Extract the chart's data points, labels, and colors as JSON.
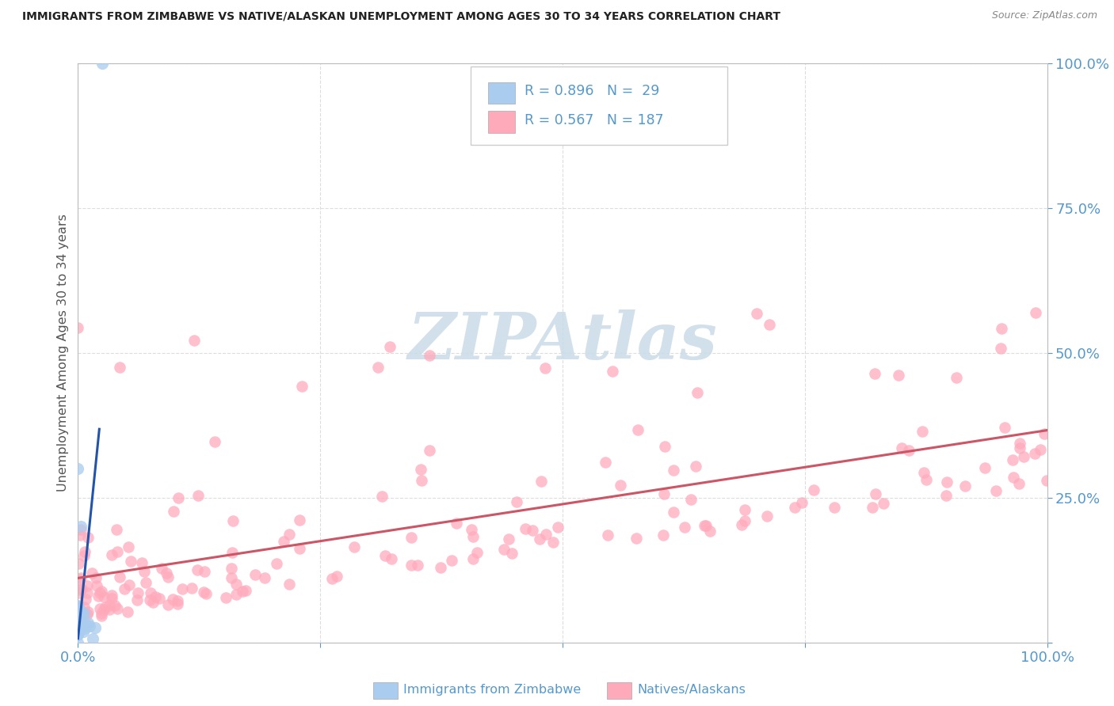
{
  "title": "IMMIGRANTS FROM ZIMBABWE VS NATIVE/ALASKAN UNEMPLOYMENT AMONG AGES 30 TO 34 YEARS CORRELATION CHART",
  "source": "Source: ZipAtlas.com",
  "ylabel": "Unemployment Among Ages 30 to 34 years",
  "legend1_r": "0.896",
  "legend1_n": "29",
  "legend2_r": "0.567",
  "legend2_n": "187",
  "blue_scatter_color": "#AACCEE",
  "pink_scatter_color": "#FFAABB",
  "blue_line_color": "#2255AA",
  "pink_line_color": "#CC5566",
  "watermark_color": "#CCDDE8",
  "tick_color": "#5599CC",
  "title_color": "#222222",
  "source_color": "#888888",
  "ylabel_color": "#555555",
  "background_color": "#FFFFFF",
  "grid_color": "#DDDDDD",
  "legend_edge_color": "#CCCCCC",
  "legend_bg_color": "#FFFFFF"
}
